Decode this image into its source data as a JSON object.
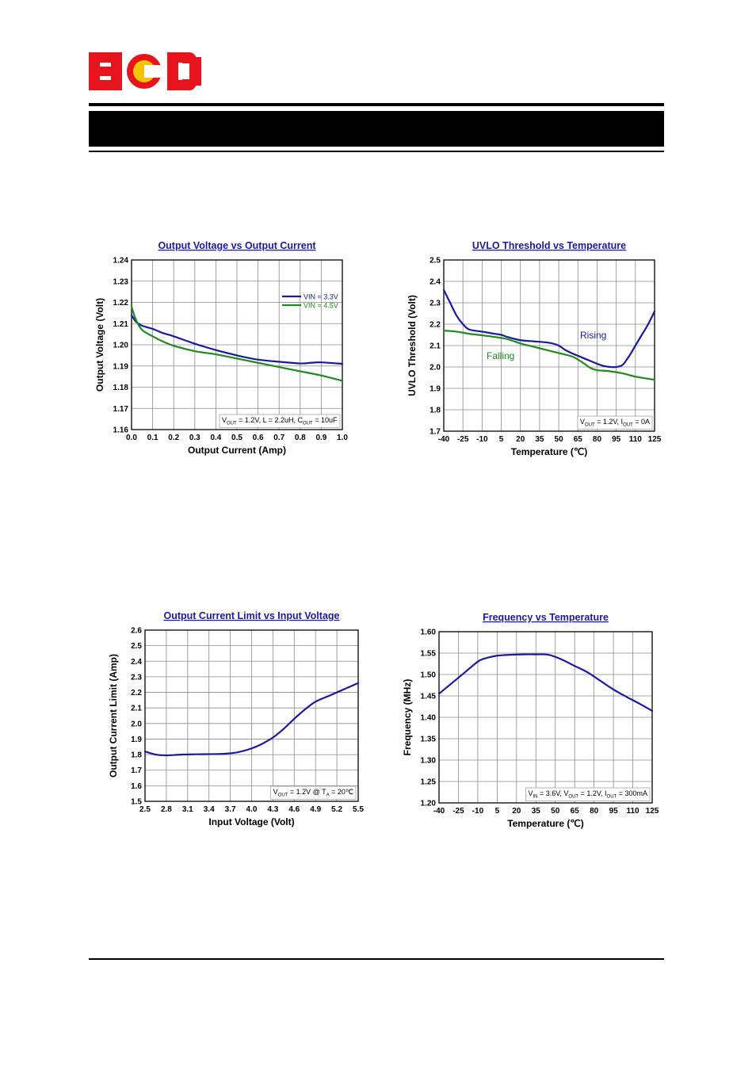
{
  "brand": {
    "logo_text": "BCD",
    "logo_red": "#e8141b",
    "logo_yellow": "#f5c400"
  },
  "colors": {
    "blue": "#1a1a9e",
    "green": "#1f8a1f",
    "grid": "#8a8a8a",
    "title": "#1a1a9e"
  },
  "chart_data": [
    {
      "type": "line",
      "title": "Output Voltage vs Output Current",
      "xlabel": "Output Current (Amp)",
      "ylabel": "Output Voltage (Volt)",
      "xlim": [
        0,
        1.0
      ],
      "ylim": [
        1.16,
        1.24
      ],
      "xticks": [
        0.0,
        0.1,
        0.2,
        0.3,
        0.4,
        0.5,
        0.6,
        0.7,
        0.8,
        0.9,
        1.0
      ],
      "xtick_labels": [
        "0.0",
        "0.1",
        "0.2",
        "0.3",
        "0.4",
        "0.5",
        "0.6",
        "0.7",
        "0.8",
        "0.9",
        "1.0"
      ],
      "yticks": [
        1.16,
        1.17,
        1.18,
        1.19,
        1.2,
        1.21,
        1.22,
        1.23,
        1.24
      ],
      "ytick_labels": [
        "1.16",
        "1.17",
        "1.18",
        "1.19",
        "1.20",
        "1.21",
        "1.22",
        "1.23",
        "1.24"
      ],
      "grid": true,
      "legend": "top-right",
      "annotation": {
        "segments": [
          [
            "V",
            ""
          ],
          [
            "OUT",
            "sub"
          ],
          [
            " = 1.2V, L = 2.2uH, C",
            ""
          ],
          [
            "OUT",
            "sub"
          ],
          [
            " = 10uF",
            ""
          ]
        ]
      },
      "series": [
        {
          "name": "VIN = 3.3V",
          "color": "#1a1a9e",
          "x": [
            0.0,
            0.02,
            0.05,
            0.1,
            0.15,
            0.2,
            0.3,
            0.4,
            0.5,
            0.6,
            0.7,
            0.8,
            0.85,
            0.9,
            1.0
          ],
          "y": [
            1.214,
            1.211,
            1.209,
            1.2075,
            1.2055,
            1.204,
            1.2005,
            1.1975,
            1.195,
            1.193,
            1.192,
            1.1912,
            1.1915,
            1.1917,
            1.191
          ]
        },
        {
          "name": "VIN = 4.5V",
          "color": "#1f8a1f",
          "x": [
            0.0,
            0.02,
            0.05,
            0.1,
            0.15,
            0.2,
            0.3,
            0.4,
            0.5,
            0.6,
            0.7,
            0.8,
            0.9,
            1.0
          ],
          "y": [
            1.218,
            1.212,
            1.207,
            1.204,
            1.2015,
            1.1995,
            1.197,
            1.1955,
            1.1935,
            1.1915,
            1.1895,
            1.1875,
            1.1855,
            1.183
          ]
        }
      ]
    },
    {
      "type": "line",
      "title": "UVLO Threshold vs Temperature",
      "xlabel": "Temperature (℃)",
      "ylabel": "UVLO Threshold (Volt)",
      "xlim": [
        -40,
        125
      ],
      "ylim": [
        1.7,
        2.5
      ],
      "xticks": [
        -40,
        -25,
        -10,
        5,
        20,
        35,
        50,
        65,
        80,
        95,
        110,
        125
      ],
      "xtick_labels": [
        "-40",
        "-25",
        "-10",
        "5",
        "20",
        "35",
        "50",
        "65",
        "80",
        "95",
        "110",
        "125"
      ],
      "yticks": [
        1.7,
        1.8,
        1.9,
        2.0,
        2.1,
        2.2,
        2.3,
        2.4,
        2.5
      ],
      "ytick_labels": [
        "1.7",
        "1.8",
        "1.9",
        "2.0",
        "2.1",
        "2.2",
        "2.3",
        "2.4",
        "2.5"
      ],
      "grid": true,
      "annotation": {
        "segments": [
          [
            "V",
            ""
          ],
          [
            "OUT",
            "sub"
          ],
          [
            " = 1.2V, I",
            ""
          ],
          [
            "OUT",
            "sub"
          ],
          [
            " = 0A",
            ""
          ]
        ]
      },
      "series": [
        {
          "name": "Rising",
          "color": "#1a1a9e",
          "x": [
            -40,
            -35,
            -30,
            -25,
            -20,
            -10,
            0,
            5,
            10,
            20,
            30,
            40,
            45,
            50,
            55,
            60,
            70,
            80,
            85,
            90,
            95,
            100,
            105,
            110,
            115,
            120,
            125
          ],
          "y": [
            2.36,
            2.3,
            2.24,
            2.2,
            2.175,
            2.165,
            2.155,
            2.15,
            2.14,
            2.125,
            2.12,
            2.115,
            2.11,
            2.1,
            2.08,
            2.065,
            2.04,
            2.015,
            2.005,
            2.0,
            2.0,
            2.01,
            2.05,
            2.1,
            2.15,
            2.2,
            2.26
          ]
        },
        {
          "name": "Falling",
          "color": "#1f8a1f",
          "x": [
            -40,
            -30,
            -20,
            -10,
            0,
            10,
            20,
            30,
            40,
            50,
            60,
            65,
            70,
            75,
            80,
            90,
            100,
            110,
            120,
            125
          ],
          "y": [
            2.17,
            2.165,
            2.155,
            2.148,
            2.14,
            2.13,
            2.11,
            2.095,
            2.08,
            2.065,
            2.05,
            2.035,
            2.015,
            1.995,
            1.985,
            1.98,
            1.97,
            1.955,
            1.945,
            1.94
          ]
        }
      ]
    },
    {
      "type": "line",
      "title": "Output Current Limit vs Input Voltage",
      "xlabel": "Input Voltage (Volt)",
      "ylabel": "Output Current Limit (Amp)",
      "xlim": [
        2.5,
        5.5
      ],
      "ylim": [
        1.5,
        2.6
      ],
      "xticks": [
        2.5,
        2.8,
        3.1,
        3.4,
        3.7,
        4.0,
        4.3,
        4.6,
        4.9,
        5.2,
        5.5
      ],
      "xtick_labels": [
        "2.5",
        "2.8",
        "3.1",
        "3.4",
        "3.7",
        "4.0",
        "4.3",
        "4.6",
        "4.9",
        "5.2",
        "5.5"
      ],
      "yticks": [
        1.5,
        1.6,
        1.7,
        1.8,
        1.9,
        2.0,
        2.1,
        2.2,
        2.3,
        2.4,
        2.5,
        2.6
      ],
      "ytick_labels": [
        "1.5",
        "1.6",
        "1.7",
        "1.8",
        "1.9",
        "2.0",
        "2.1",
        "2.2",
        "2.3",
        "2.4",
        "2.5",
        "2.6"
      ],
      "grid": true,
      "annotation": {
        "segments": [
          [
            "V",
            ""
          ],
          [
            "OUT",
            "sub"
          ],
          [
            " = 1.2V @ T",
            ""
          ],
          [
            "A",
            "sub"
          ],
          [
            " = 20℃",
            ""
          ]
        ]
      },
      "series": [
        {
          "name": "",
          "color": "#1a1a9e",
          "x": [
            2.5,
            2.65,
            2.8,
            3.0,
            3.2,
            3.4,
            3.6,
            3.8,
            4.0,
            4.15,
            4.3,
            4.45,
            4.6,
            4.75,
            4.9,
            5.1,
            5.3,
            5.5
          ],
          "y": [
            1.82,
            1.8,
            1.795,
            1.8,
            1.802,
            1.803,
            1.805,
            1.815,
            1.84,
            1.87,
            1.91,
            1.965,
            2.03,
            2.09,
            2.14,
            2.18,
            2.22,
            2.26
          ]
        }
      ]
    },
    {
      "type": "line",
      "title": "Frequency vs Temperature",
      "xlabel": "Temperature (℃)",
      "ylabel": "Frequency (MHz)",
      "xlim": [
        -40,
        125
      ],
      "ylim": [
        1.2,
        1.6
      ],
      "xticks": [
        -40,
        -25,
        -10,
        5,
        20,
        35,
        50,
        65,
        80,
        95,
        110,
        125
      ],
      "xtick_labels": [
        "-40",
        "-25",
        "-10",
        "5",
        "20",
        "35",
        "50",
        "65",
        "80",
        "95",
        "110",
        "125"
      ],
      "yticks": [
        1.2,
        1.25,
        1.3,
        1.35,
        1.4,
        1.45,
        1.5,
        1.55,
        1.6
      ],
      "ytick_labels": [
        "1.20",
        "1.25",
        "1.30",
        "1.35",
        "1.40",
        "1.45",
        "1.50",
        "1.55",
        "1.60"
      ],
      "grid": true,
      "annotation": {
        "segments": [
          [
            "V",
            ""
          ],
          [
            "IN",
            "sub"
          ],
          [
            " = 3.6V, V",
            ""
          ],
          [
            "OUT",
            "sub"
          ],
          [
            " = 1.2V, I",
            ""
          ],
          [
            "OUT",
            "sub"
          ],
          [
            " = 300mA",
            ""
          ]
        ]
      },
      "series": [
        {
          "name": "",
          "color": "#1a1a9e",
          "x": [
            -40,
            -30,
            -20,
            -10,
            -5,
            0,
            5,
            15,
            25,
            35,
            45,
            55,
            65,
            75,
            85,
            95,
            105,
            115,
            125
          ],
          "y": [
            1.455,
            1.48,
            1.505,
            1.53,
            1.537,
            1.541,
            1.544,
            1.546,
            1.547,
            1.547,
            1.546,
            1.535,
            1.52,
            1.505,
            1.485,
            1.465,
            1.448,
            1.432,
            1.415
          ]
        }
      ]
    }
  ]
}
